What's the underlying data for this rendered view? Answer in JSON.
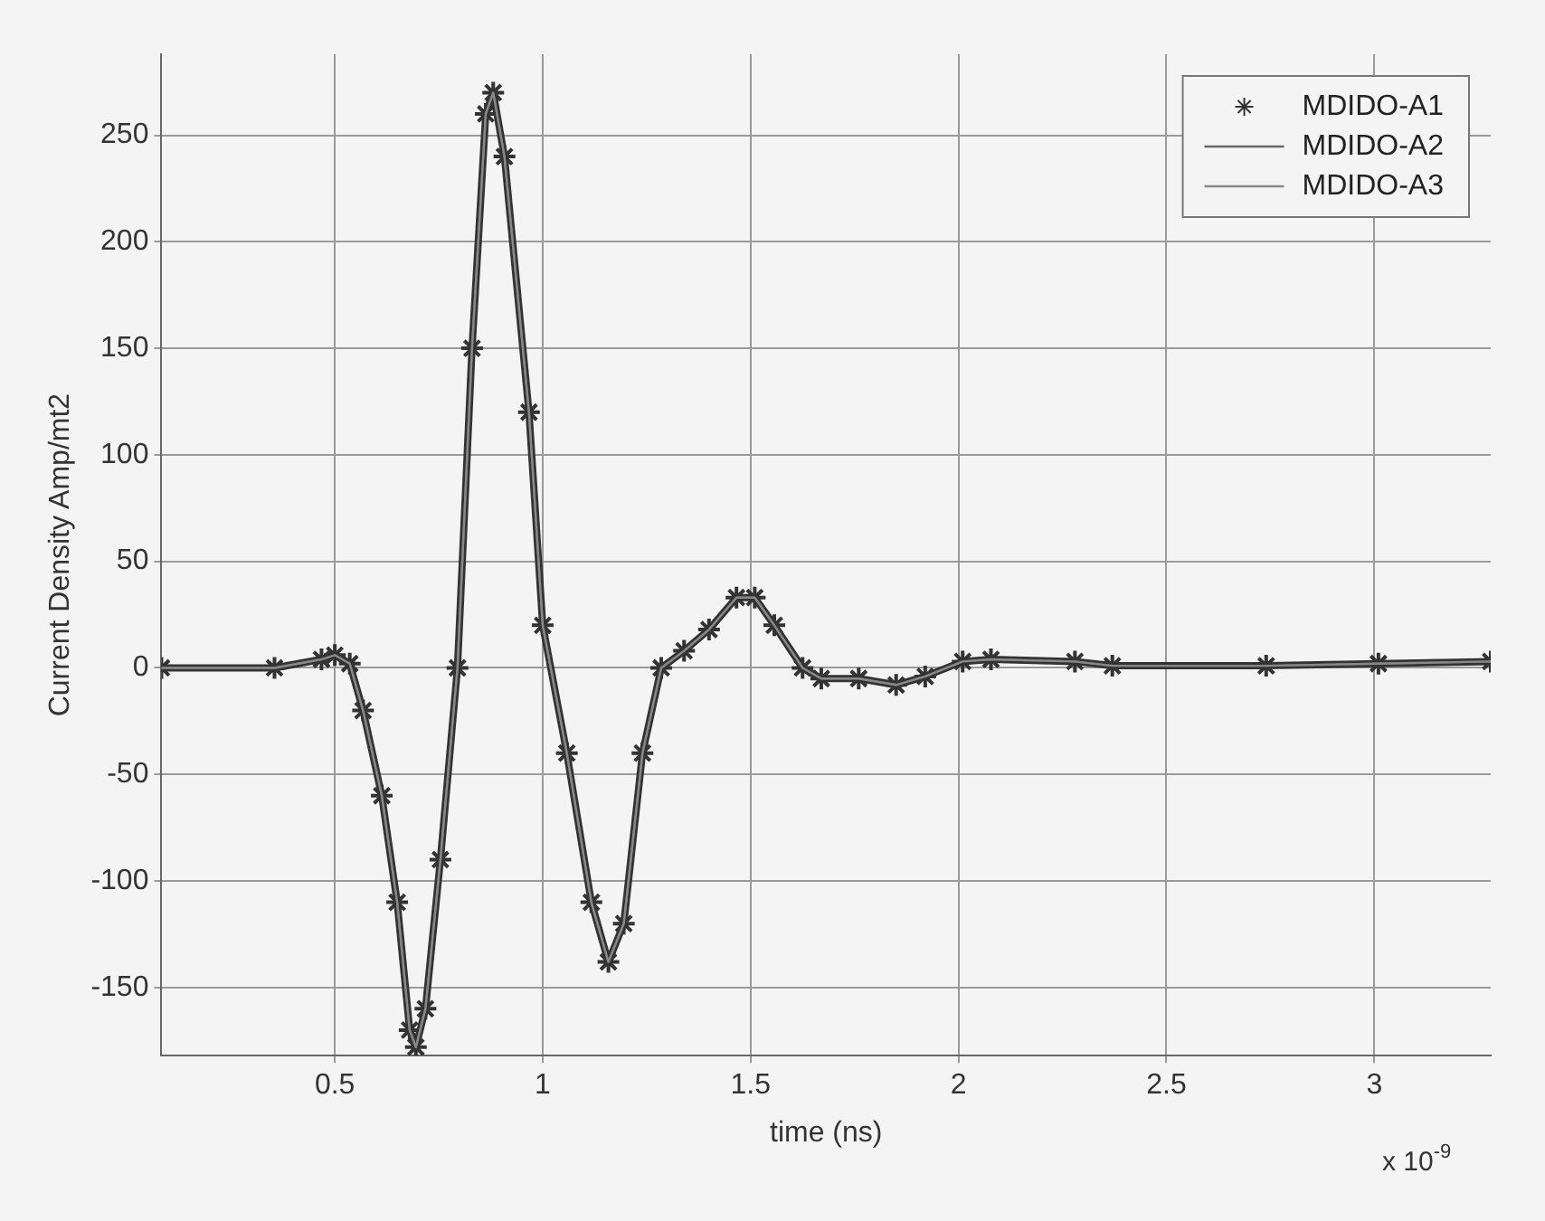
{
  "chart_data": {
    "type": "line",
    "xlabel": "time (ns)",
    "ylabel": "Current Density Amp/mt2",
    "annotations": [
      "x 10$^{-9}$"
    ],
    "x": [
      0.083,
      0.355,
      0.468,
      0.5,
      0.536,
      0.568,
      0.613,
      0.65,
      0.68,
      0.695,
      0.718,
      0.754,
      0.795,
      0.83,
      0.863,
      0.881,
      0.908,
      0.967,
      1.0,
      1.058,
      1.117,
      1.158,
      1.195,
      1.24,
      1.285,
      1.34,
      1.4,
      1.466,
      1.51,
      1.557,
      1.625,
      1.67,
      1.76,
      1.85,
      1.92,
      2.01,
      2.078,
      2.28,
      2.37,
      2.74,
      3.01,
      3.28
    ],
    "series": [
      {
        "name": "MDIDO-A1",
        "color": "#333333",
        "marker": "cross",
        "values": [
          0,
          0,
          4,
          6,
          2,
          -20,
          -60,
          -110,
          -170,
          -178,
          -160,
          -90,
          0,
          150,
          260,
          270,
          240,
          120,
          20,
          -40,
          -110,
          -138,
          -120,
          -40,
          0,
          8,
          18,
          33,
          33,
          20,
          0,
          -5,
          -5,
          -8,
          -4,
          3,
          4,
          3,
          1,
          1,
          2,
          3
        ]
      },
      {
        "name": "MDIDO-A2",
        "color": "#666666",
        "values": [
          0,
          0,
          4,
          6,
          2,
          -20,
          -60,
          -110,
          -170,
          -178,
          -160,
          -90,
          0,
          150,
          260,
          270,
          240,
          120,
          20,
          -40,
          -110,
          -138,
          -120,
          -40,
          0,
          8,
          18,
          33,
          33,
          20,
          0,
          -5,
          -5,
          -8,
          -4,
          3,
          4,
          3,
          1,
          1,
          2,
          3
        ]
      },
      {
        "name": "MDIDO-A3",
        "color": "#888888",
        "values": [
          0,
          0,
          4,
          6,
          2,
          -20,
          -60,
          -110,
          -170,
          -178,
          -160,
          -90,
          0,
          150,
          260,
          270,
          240,
          120,
          20,
          -40,
          -110,
          -138,
          -120,
          -40,
          0,
          8,
          18,
          33,
          33,
          20,
          0,
          -5,
          -5,
          -8,
          -4,
          3,
          4,
          3,
          1,
          1,
          2,
          3
        ]
      }
    ],
    "xlim": [
      0.083,
      3.28
    ],
    "xticks": [
      0.5,
      1,
      1.5,
      2,
      2.5,
      3
    ],
    "ylim": [
      -182,
      288
    ],
    "yticks": [
      -150,
      -100,
      -50,
      0,
      50,
      100,
      150,
      200,
      250
    ],
    "grid": true,
    "legend": "top right",
    "line_style": "solid"
  }
}
